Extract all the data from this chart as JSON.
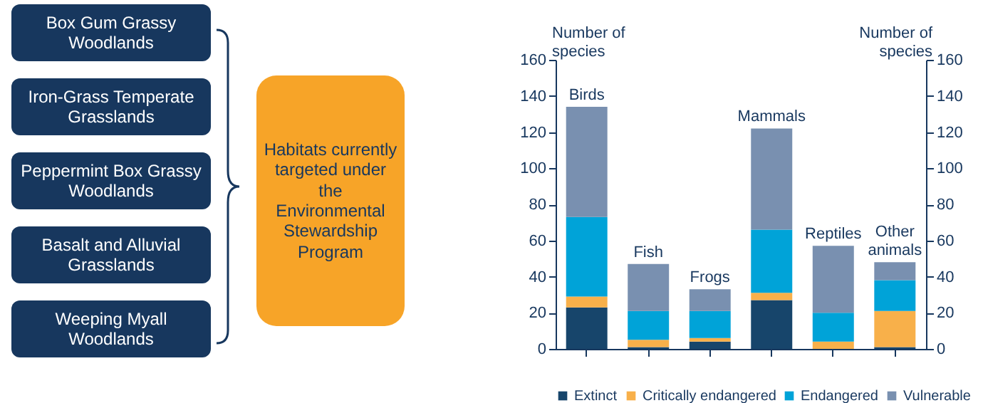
{
  "chart_data": {
    "type": "bar",
    "stacked": true,
    "categories": [
      "Birds",
      "Fish",
      "Frogs",
      "Mammals",
      "Reptiles",
      "Other animals"
    ],
    "series": [
      {
        "name": "Extinct",
        "color": "#17456b",
        "values": [
          23,
          1,
          4,
          27,
          0,
          1
        ]
      },
      {
        "name": "Critically endangered",
        "color": "#f8b04a",
        "values": [
          6,
          4,
          2,
          4,
          4,
          20
        ]
      },
      {
        "name": "Endangered",
        "color": "#00a3d8",
        "values": [
          44,
          16,
          15,
          35,
          16,
          17
        ]
      },
      {
        "name": "Vulnerable",
        "color": "#7990b0",
        "values": [
          61,
          26,
          12,
          56,
          37,
          10
        ]
      }
    ],
    "ylabel": "Number of species",
    "y2label": "Number of species",
    "ylim": [
      0,
      160
    ],
    "yticks": [
      0,
      20,
      40,
      60,
      80,
      100,
      120,
      140,
      160
    ],
    "y2lim": [
      0,
      160
    ],
    "y2ticks": [
      0,
      20,
      40,
      60,
      80,
      100,
      120,
      140,
      160
    ],
    "legend": "bottom",
    "grid": false,
    "annotations": [
      "Box Gum Grassy Woodlands",
      "Iron-Grass Temperate Grasslands",
      "Peppermint Box Grassy Woodlands",
      "Basalt and Alluvial Grasslands",
      "Weeping Myall Woodlands",
      "Habitats currently targeted under the Environmental Stewardship Program"
    ]
  }
}
